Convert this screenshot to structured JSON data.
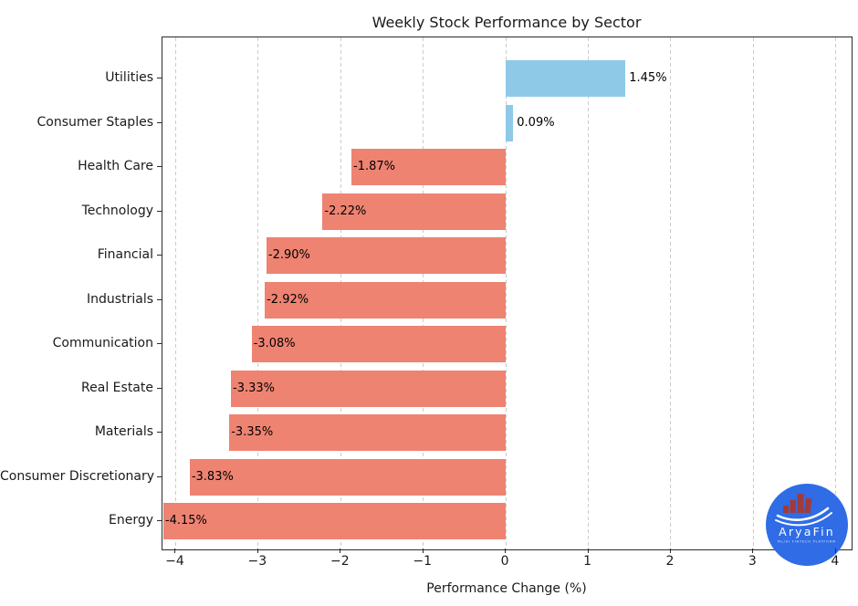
{
  "chart_data": {
    "type": "bar",
    "orientation": "horizontal",
    "title": "Weekly Stock Performance by Sector",
    "xlabel": "Performance Change (%)",
    "categories": [
      "Utilities",
      "Consumer Staples",
      "Health Care",
      "Technology",
      "Financial",
      "Industrials",
      "Communication",
      "Real Estate",
      "Materials",
      "Consumer Discretionary",
      "Energy"
    ],
    "values": [
      1.45,
      0.09,
      -1.87,
      -2.22,
      -2.9,
      -2.92,
      -3.08,
      -3.33,
      -3.35,
      -3.83,
      -4.15
    ],
    "bar_labels": [
      "1.45%",
      "0.09%",
      "-1.87%",
      "-2.22%",
      "-2.90%",
      "-2.92%",
      "-3.08%",
      "-3.33%",
      "-3.35%",
      "-3.83%",
      "-4.15%"
    ],
    "xlim": [
      -4.16,
      4.19
    ],
    "xticks": [
      -4,
      -3,
      -2,
      -1,
      0,
      1,
      2,
      3,
      4
    ],
    "xtick_labels": [
      "−4",
      "−3",
      "−2",
      "−1",
      "0",
      "1",
      "2",
      "3",
      "4"
    ],
    "grid": "vertical-dashed",
    "legend": "none",
    "positive_color": "#8ec9e8",
    "negative_color": "#ee8372"
  },
  "logo": {
    "brand": "AryaFin",
    "tagline": "ML/AI FINTECH PLATFORM",
    "circle_color": "#2f6ce6",
    "building_color": "#a23a3a",
    "swoosh_color": "#ffffff",
    "text_color": "#ffffff"
  }
}
